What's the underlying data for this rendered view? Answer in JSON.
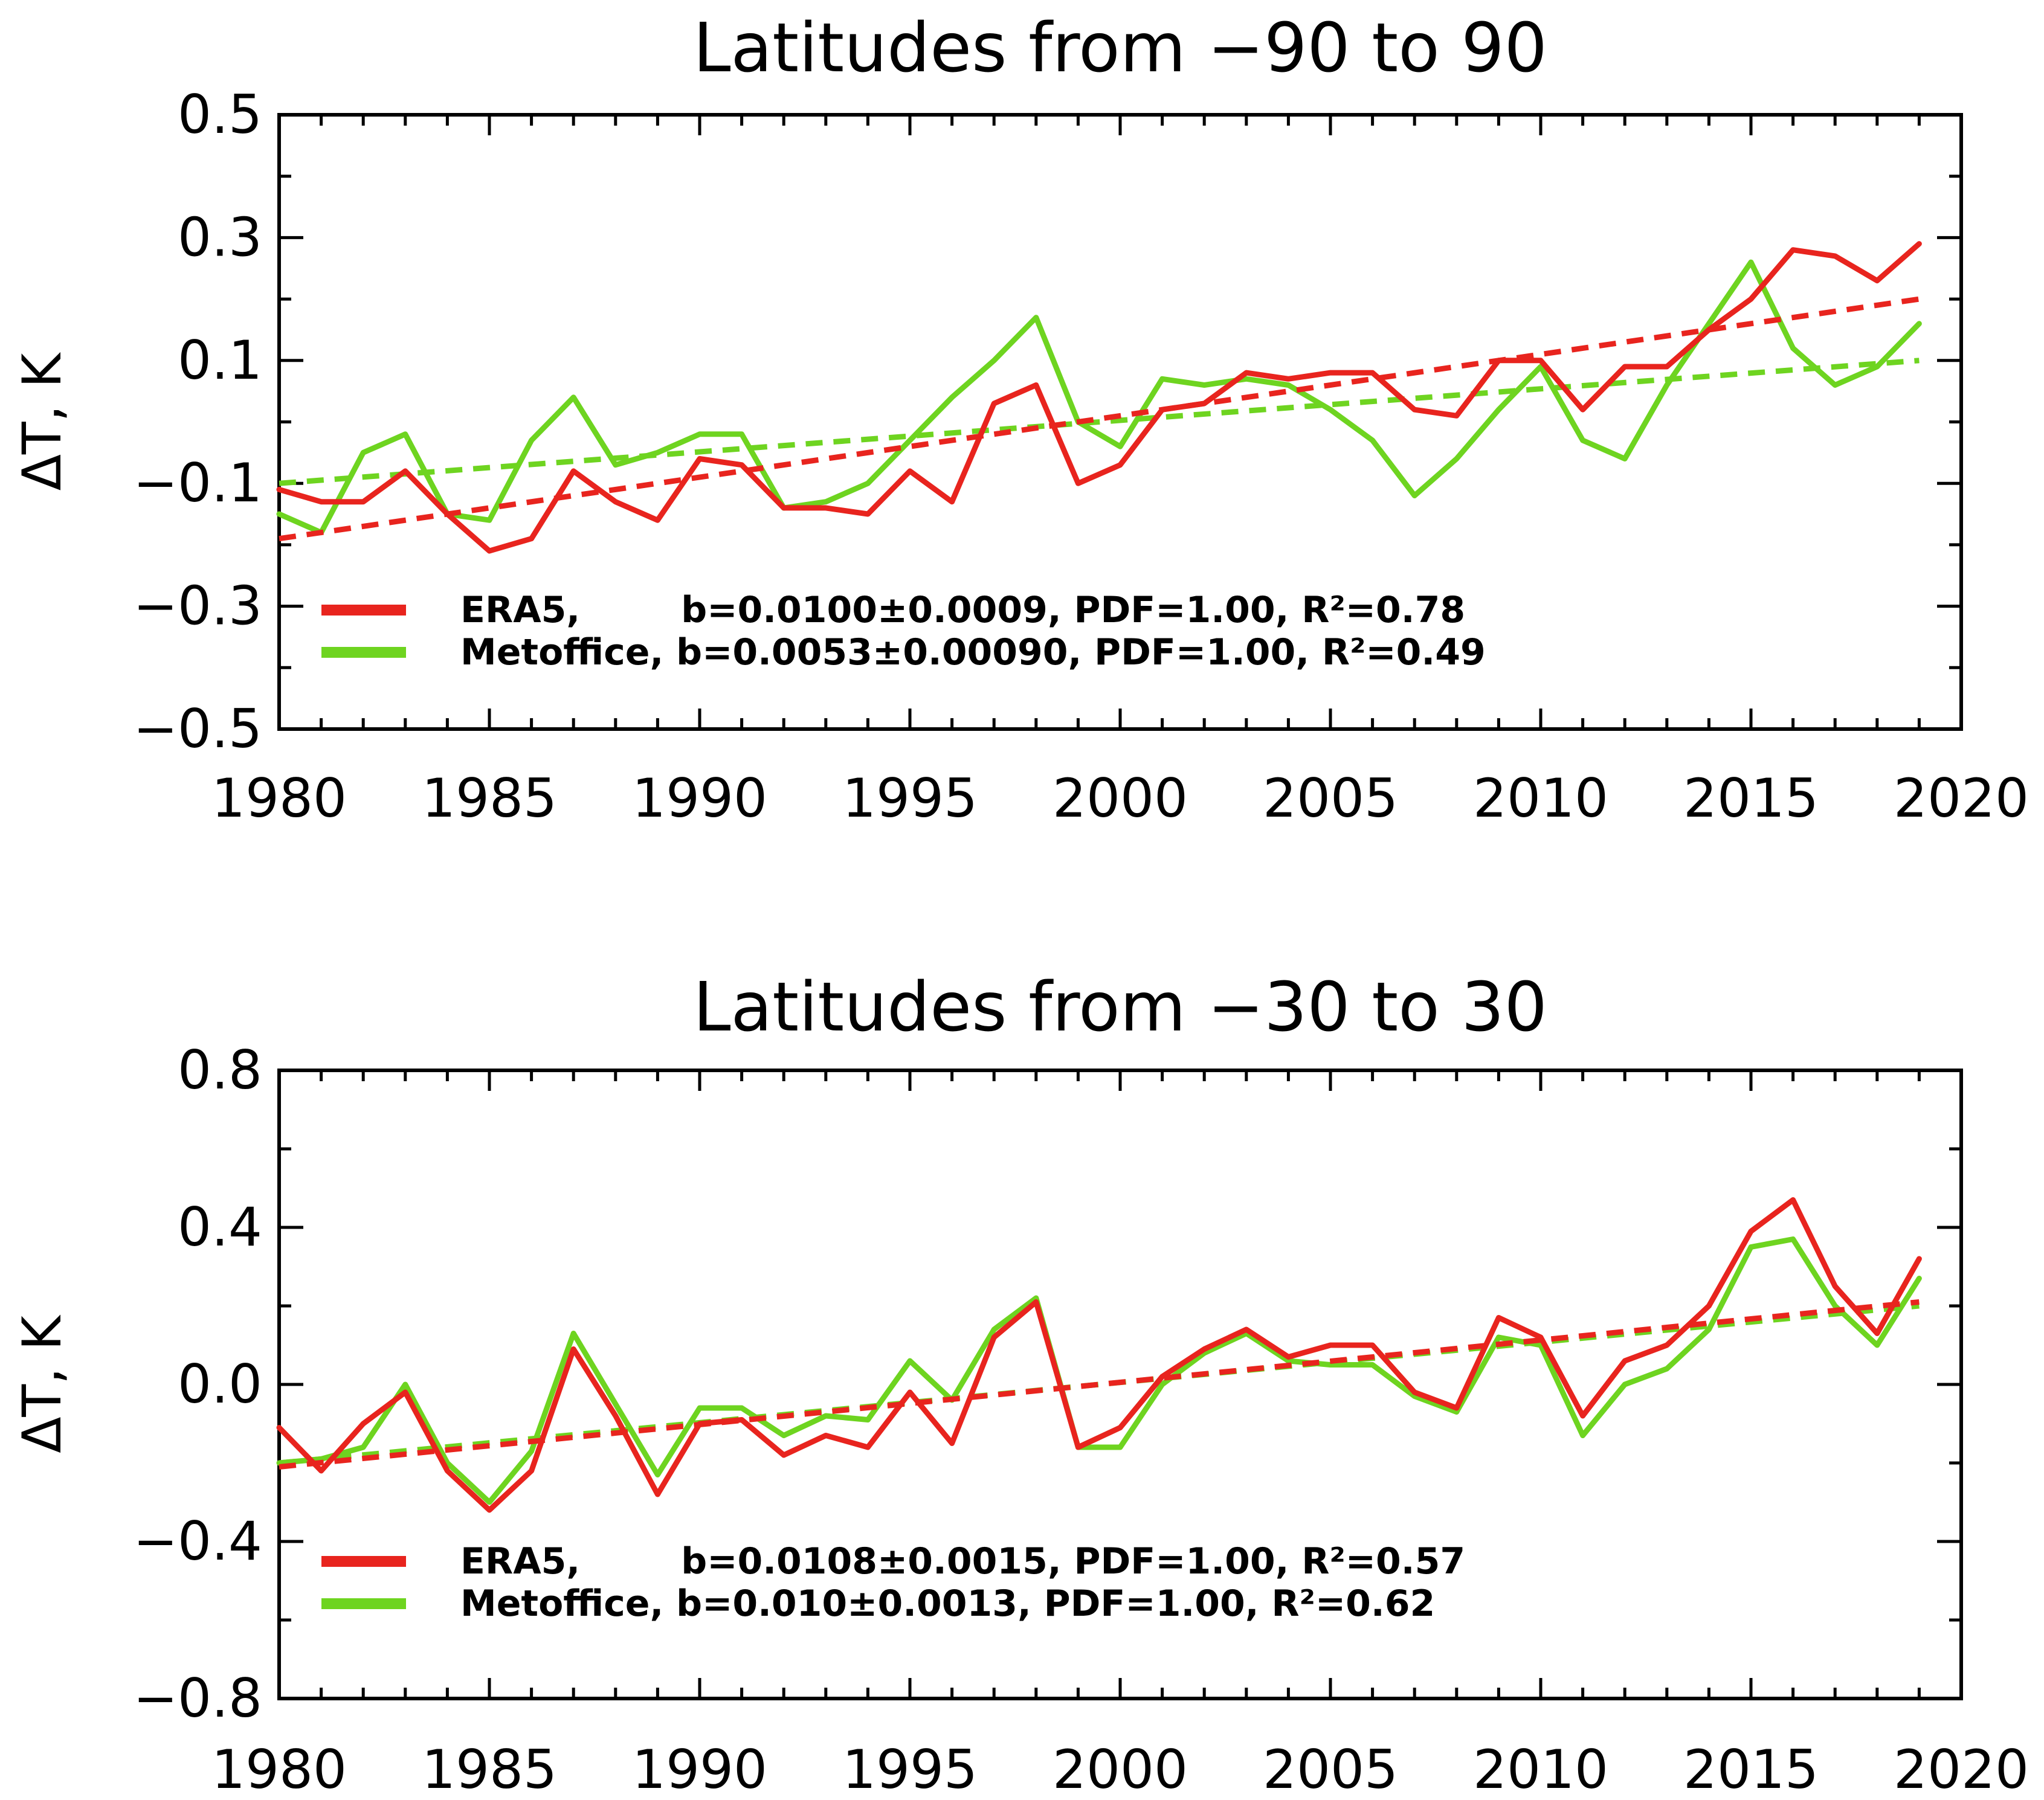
{
  "colors": {
    "era5": "#e8241e",
    "metoffice": "#6ed420",
    "axes": "#000000"
  },
  "chart_data": [
    {
      "type": "line",
      "title": "Latitudes from −90 to 90",
      "xlabel": "",
      "ylabel": "ΔT, K",
      "xlim": [
        1980,
        2020
      ],
      "ylim": [
        -0.5,
        0.5
      ],
      "xticks": [
        1980,
        1985,
        1990,
        1995,
        2000,
        2005,
        2010,
        2015,
        2020
      ],
      "yticks": [
        0.5,
        0.3,
        0.1,
        -0.1,
        -0.3,
        -0.5
      ],
      "ytick_labels": [
        "0.5",
        "0.3",
        "0.1",
        "−0.1",
        "−0.3",
        "−0.5"
      ],
      "x": [
        1980,
        1981,
        1982,
        1983,
        1984,
        1985,
        1986,
        1987,
        1988,
        1989,
        1990,
        1991,
        1992,
        1993,
        1994,
        1995,
        1996,
        1997,
        1998,
        1999,
        2000,
        2001,
        2002,
        2003,
        2004,
        2005,
        2006,
        2007,
        2008,
        2009,
        2010,
        2011,
        2012,
        2013,
        2014,
        2015,
        2016,
        2017,
        2018,
        2019
      ],
      "series": [
        {
          "name": "ERA5",
          "color_key": "era5",
          "values": [
            -0.11,
            -0.13,
            -0.13,
            -0.08,
            -0.15,
            -0.21,
            -0.19,
            -0.08,
            -0.13,
            -0.16,
            -0.06,
            -0.07,
            -0.14,
            -0.14,
            -0.15,
            -0.08,
            -0.13,
            0.03,
            0.06,
            -0.1,
            -0.07,
            0.02,
            0.03,
            0.08,
            0.07,
            0.08,
            0.08,
            0.02,
            0.01,
            0.1,
            0.1,
            0.02,
            0.09,
            0.09,
            0.15,
            0.2,
            0.28,
            0.27,
            0.23,
            0.29
          ],
          "trend": [
            -0.19,
            0.2
          ],
          "legend": "ERA5,        b=0.0100±0.0009, PDF=1.00, R²=0.78"
        },
        {
          "name": "Metoffice",
          "color_key": "metoffice",
          "values": [
            -0.15,
            -0.18,
            -0.05,
            -0.02,
            -0.15,
            -0.16,
            -0.03,
            0.04,
            -0.07,
            -0.05,
            -0.02,
            -0.02,
            -0.14,
            -0.13,
            -0.1,
            -0.03,
            0.04,
            0.1,
            0.17,
            0.0,
            -0.04,
            0.07,
            0.06,
            0.07,
            0.06,
            0.02,
            -0.03,
            -0.12,
            -0.06,
            0.02,
            0.09,
            -0.03,
            -0.06,
            0.06,
            0.16,
            0.26,
            0.12,
            0.06,
            0.09,
            0.16
          ],
          "trend": [
            -0.1,
            0.1
          ],
          "legend": "Metoffice, b=0.0053±0.00090, PDF=1.00, R²=0.49"
        }
      ],
      "legend_position": "bottom-left"
    },
    {
      "type": "line",
      "title": "Latitudes from −30 to 30",
      "xlabel": "",
      "ylabel": "ΔT, K",
      "xlim": [
        1980,
        2020
      ],
      "ylim": [
        -0.8,
        0.8
      ],
      "xticks": [
        1980,
        1985,
        1990,
        1995,
        2000,
        2005,
        2010,
        2015,
        2020
      ],
      "yticks": [
        0.8,
        0.4,
        0.0,
        -0.4,
        -0.8
      ],
      "ytick_labels": [
        "0.8",
        "0.4",
        "0.0",
        "−0.4",
        "−0.8"
      ],
      "x": [
        1980,
        1981,
        1982,
        1983,
        1984,
        1985,
        1986,
        1987,
        1988,
        1989,
        1990,
        1991,
        1992,
        1993,
        1994,
        1995,
        1996,
        1997,
        1998,
        1999,
        2000,
        2001,
        2002,
        2003,
        2004,
        2005,
        2006,
        2007,
        2008,
        2009,
        2010,
        2011,
        2012,
        2013,
        2014,
        2015,
        2016,
        2017,
        2018,
        2019
      ],
      "series": [
        {
          "name": "ERA5",
          "color_key": "era5",
          "values": [
            -0.11,
            -0.22,
            -0.1,
            -0.02,
            -0.22,
            -0.32,
            -0.22,
            0.09,
            -0.08,
            -0.28,
            -0.1,
            -0.09,
            -0.18,
            -0.13,
            -0.16,
            -0.02,
            -0.15,
            0.12,
            0.21,
            -0.16,
            -0.11,
            0.02,
            0.09,
            0.14,
            0.07,
            0.1,
            0.1,
            -0.02,
            -0.06,
            0.17,
            0.12,
            -0.08,
            0.06,
            0.1,
            0.2,
            0.39,
            0.47,
            0.25,
            0.13,
            0.32
          ],
          "trend": [
            -0.21,
            0.21
          ],
          "legend": "ERA5,        b=0.0108±0.0015, PDF=1.00, R²=0.57"
        },
        {
          "name": "Metoffice",
          "color_key": "metoffice",
          "values": [
            -0.2,
            -0.19,
            -0.16,
            0.0,
            -0.2,
            -0.3,
            -0.17,
            0.13,
            -0.05,
            -0.23,
            -0.06,
            -0.06,
            -0.13,
            -0.08,
            -0.09,
            0.06,
            -0.04,
            0.14,
            0.22,
            -0.16,
            -0.16,
            0.0,
            0.08,
            0.13,
            0.06,
            0.05,
            0.05,
            -0.03,
            -0.07,
            0.12,
            0.1,
            -0.13,
            0.0,
            0.04,
            0.14,
            0.35,
            0.37,
            0.2,
            0.1,
            0.27
          ],
          "trend": [
            -0.2,
            0.2
          ],
          "legend": "Metoffice, b=0.010±0.0013, PDF=1.00, R²=0.62"
        }
      ],
      "legend_position": "bottom-left"
    }
  ]
}
